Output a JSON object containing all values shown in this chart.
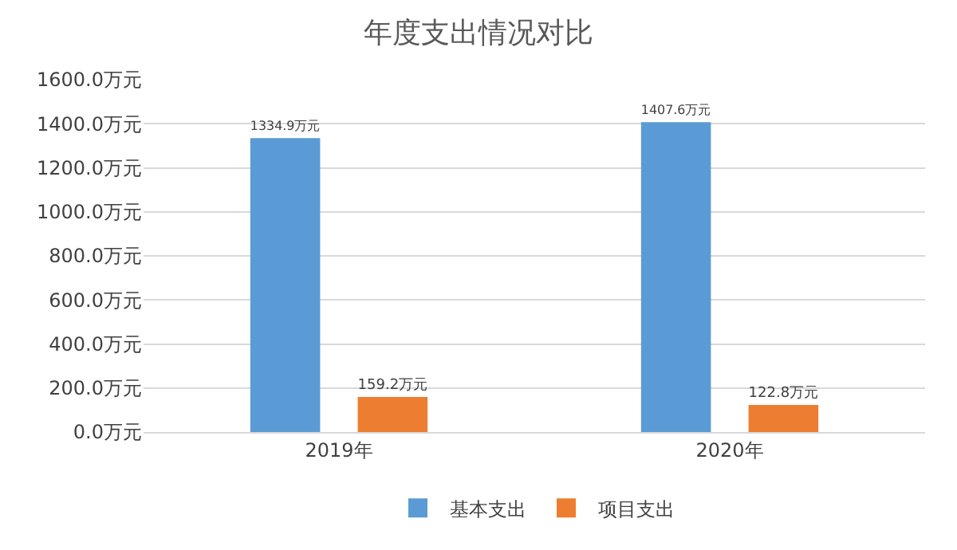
{
  "chart_data": {
    "type": "bar",
    "title": "年度支出情况对比",
    "categories": [
      "2019年",
      "2020年"
    ],
    "series": [
      {
        "name": "基本支出",
        "color": "#5b9bd5",
        "values": [
          1334.9,
          1407.6
        ],
        "value_labels": [
          "1334.9万元",
          "1407.6万元"
        ]
      },
      {
        "name": "项目支出",
        "color": "#ed7d31",
        "values": [
          159.2,
          122.8
        ],
        "value_labels": [
          "159.2万元",
          "122.8万元"
        ]
      }
    ],
    "ylim": [
      0,
      1600
    ],
    "yticks": [
      {
        "value": 0,
        "label": "0.0万元"
      },
      {
        "value": 200,
        "label": "200.0万元"
      },
      {
        "value": 400,
        "label": "400.0万元"
      },
      {
        "value": 600,
        "label": "600.0万元"
      },
      {
        "value": 800,
        "label": "800.0万元"
      },
      {
        "value": 1000,
        "label": "1000.0万元"
      },
      {
        "value": 1200,
        "label": "1200.0万元"
      },
      {
        "value": 1400,
        "label": "1400.0万元"
      },
      {
        "value": 1600,
        "label": "1600.0万元"
      }
    ],
    "grid": "y",
    "legend": "bottom"
  }
}
